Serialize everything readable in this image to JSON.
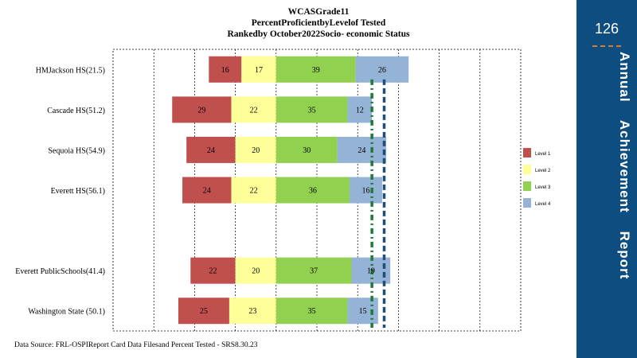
{
  "title": {
    "line1": "WCASGrade11",
    "line2": "PercentProficientbyLevelof Tested",
    "line3": "Rankedby October2022Socio- economic Status"
  },
  "source": "Data Source: FRL-OSPIReport Card Data Filesand Percent  Tested - SRS8.30.23",
  "sidebar": {
    "page_number": "126",
    "title": "Annual    Achievement    Report",
    "background": "#0e4d80",
    "accent": "#e07b2a"
  },
  "chart_data": {
    "type": "bar",
    "orientation": "horizontal",
    "stacked": true,
    "grid": true,
    "legend_position": "right",
    "categories": [
      "HMJackson HS(21.5)",
      "Cascade HS(51.2)",
      "Sequoia HS(54.9)",
      "Everett HS(56.1)",
      "",
      "Everett PublicSchools(41.4)",
      "Washington State (50.1)"
    ],
    "series": [
      {
        "name": "Level 1",
        "color": "#c0504d",
        "values": [
          16,
          29,
          24,
          24,
          null,
          22,
          25
        ]
      },
      {
        "name": "Level 2",
        "color": "#ffff99",
        "values": [
          17,
          22,
          20,
          22,
          null,
          20,
          23
        ]
      },
      {
        "name": "Level 3",
        "color": "#92d050",
        "values": [
          39,
          35,
          30,
          36,
          null,
          37,
          35
        ]
      },
      {
        "name": "Level 4",
        "color": "#95b3d7",
        "values": [
          26,
          12,
          24,
          16,
          null,
          19,
          15
        ]
      }
    ],
    "xlim": [
      -80,
      120
    ],
    "reference_lines": [
      {
        "value": 47,
        "color": "#1f7a3a",
        "style": "dash-dot"
      },
      {
        "value": 53,
        "color": "#1f4e79",
        "style": "dash"
      }
    ]
  }
}
